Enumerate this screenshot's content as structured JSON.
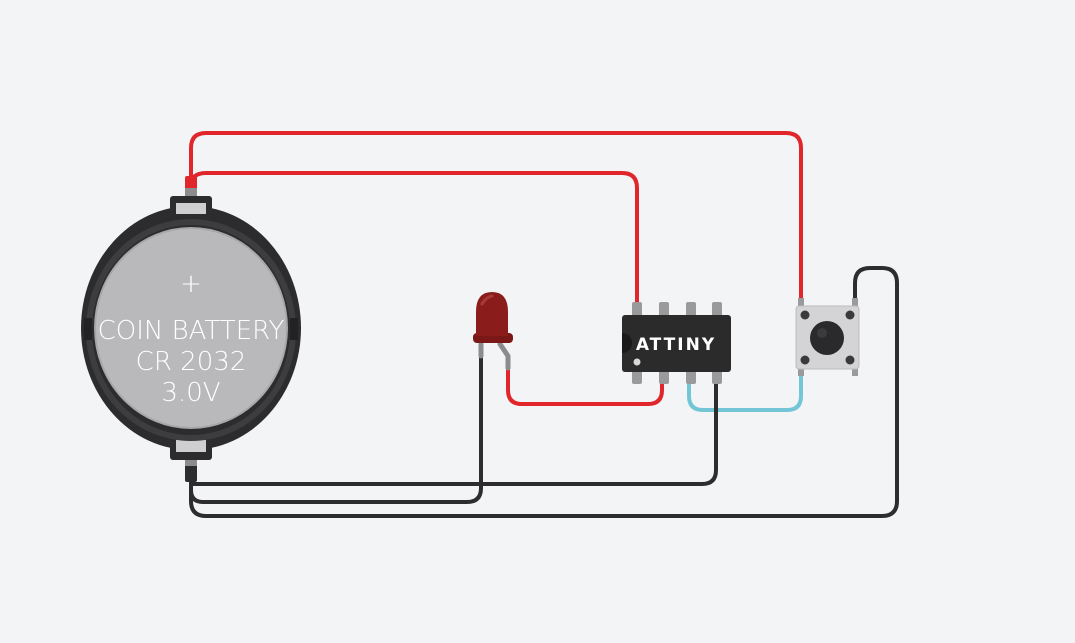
{
  "battery": {
    "plus_symbol": "+",
    "line1": "COIN BATTERY",
    "line2": "CR 2032",
    "line3": "3.0V"
  },
  "chip": {
    "label": "ATTINY"
  },
  "colors": {
    "background": "#f3f4f6",
    "wire_red": "#e0262b",
    "wire_black": "#2d2d2f",
    "wire_cyan": "#72c6d6",
    "led_red": "#8b1c1c",
    "chip_body": "#2b2b2b",
    "battery_holder": "#2c2c2e",
    "battery_cell": "#b9b9bb",
    "button_body": "#d4d4d6"
  }
}
